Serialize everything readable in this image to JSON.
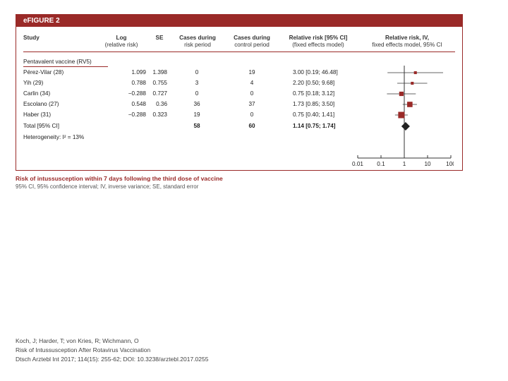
{
  "figure": {
    "label": "eFIGURE 2",
    "columns": {
      "study": "Study",
      "log_main": "Log",
      "log_sub": "(relative risk)",
      "se": "SE",
      "risk_main": "Cases during",
      "risk_sub": "risk period",
      "control_main": "Cases during",
      "control_sub": "control period",
      "rr_main": "Relative risk [95% CI]",
      "rr_sub": "(fixed effects model)",
      "plot_main": "Relative risk, IV,",
      "plot_sub": "fixed effects model, 95% CI"
    },
    "group_label": "Pentavalent vaccine (RV5)",
    "rows": [
      {
        "study": "Pérez-Vilar (28)",
        "log_rr": "1.099",
        "se": "1.398",
        "cases_risk": "0",
        "cases_control": "19",
        "rr_ci": "3.00 [0.19; 46.48]"
      },
      {
        "study": "Yih (29)",
        "log_rr": "0.788",
        "se": "0.755",
        "cases_risk": "3",
        "cases_control": "4",
        "rr_ci": "2.20 [0.50; 9.68]"
      },
      {
        "study": "Carlin (34)",
        "log_rr": "−0.288",
        "se": "0.727",
        "cases_risk": "0",
        "cases_control": "0",
        "rr_ci": "0.75 [0.18; 3.12]"
      },
      {
        "study": "Escolano (27)",
        "log_rr": "0.548",
        "se": "0.36",
        "cases_risk": "36",
        "cases_control": "37",
        "rr_ci": "1.73 [0.85; 3.50]"
      },
      {
        "study": "Haber (31)",
        "log_rr": "−0.288",
        "se": "0.323",
        "cases_risk": "19",
        "cases_control": "0",
        "rr_ci": "0.75 [0.40; 1.41]"
      }
    ],
    "total": {
      "label": "Total [95% CI]",
      "cases_risk": "58",
      "cases_control": "60",
      "rr_ci": "1.14 [0.75; 1.74]"
    },
    "heterogeneity": "Heterogeneity: I² = 13%",
    "caption_title": "Risk of intussusception within 7 days following the third dose of vaccine",
    "caption_note": "95% CI, 95% confidence interval; IV, inverse variance; SE, standard error"
  },
  "chart_data": {
    "type": "forest",
    "x_scale": "log",
    "xlim": [
      0.01,
      100
    ],
    "x_ticks": [
      0.01,
      0.1,
      1,
      10,
      100
    ],
    "x_tick_labels": [
      "0.01",
      "0.1",
      "1",
      "10",
      "100"
    ],
    "reference_line": 1,
    "studies": [
      {
        "rr": 3.0,
        "lo": 0.19,
        "hi": 46.48,
        "weight": 0.3
      },
      {
        "rr": 2.2,
        "lo": 0.5,
        "hi": 9.68,
        "weight": 0.3
      },
      {
        "rr": 0.75,
        "lo": 0.18,
        "hi": 3.12,
        "weight": 0.6
      },
      {
        "rr": 1.73,
        "lo": 0.85,
        "hi": 3.5,
        "weight": 0.8
      },
      {
        "rr": 0.75,
        "lo": 0.4,
        "hi": 1.41,
        "weight": 1.0
      }
    ],
    "pooled": {
      "rr": 1.14,
      "lo": 0.75,
      "hi": 1.74
    },
    "colors": {
      "square": "#9a2a28",
      "diamond": "#222222",
      "lines": "#333333"
    }
  },
  "citation": {
    "line1": "Koch, J; Harder, T; von Kries, R; Wichmann, O",
    "line2": "Risk of Intussusception After Rotavirus Vaccination",
    "line3": "Dtsch Arztebl Int 2017; 114(15): 255-62; DOI: 10.3238/arztebl.2017.0255"
  }
}
